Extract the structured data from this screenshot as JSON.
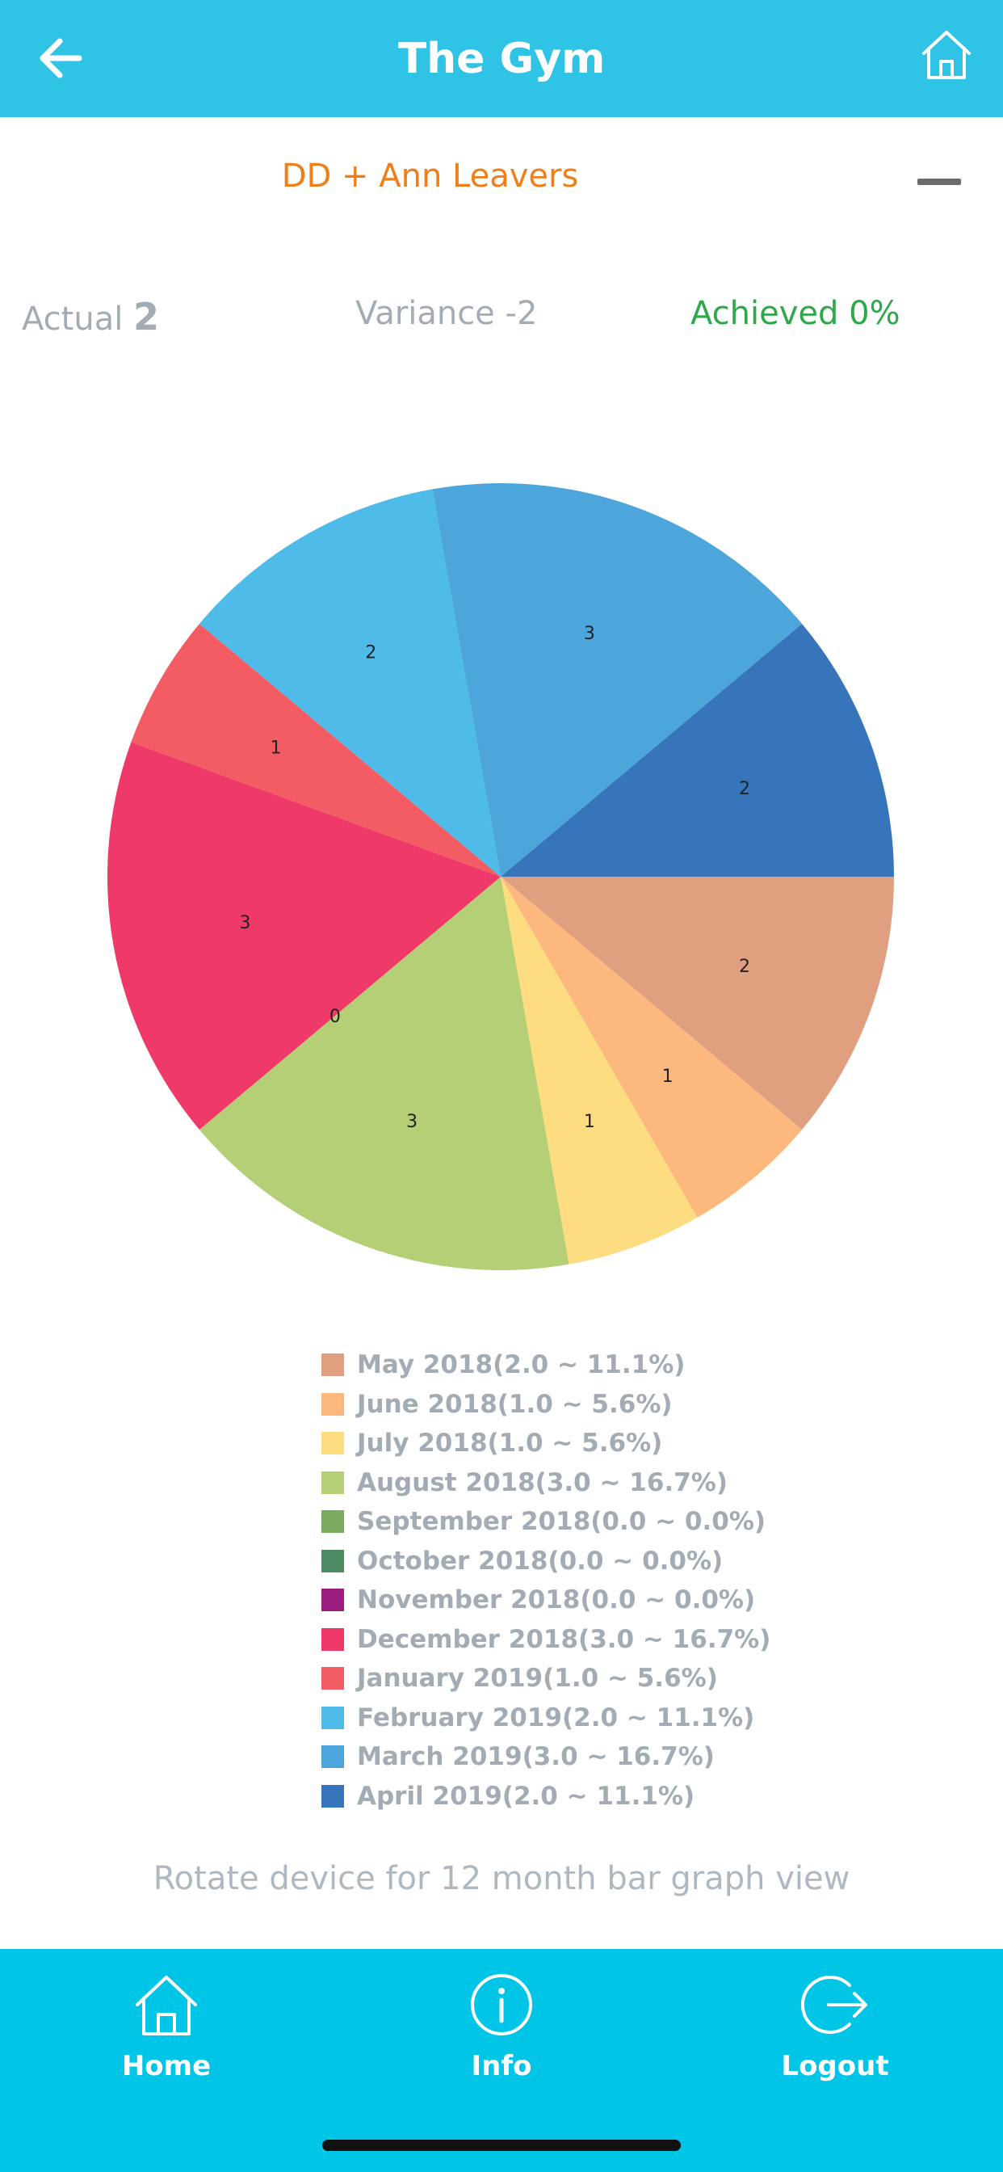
{
  "header": {
    "title": "The Gym",
    "back_icon": "arrow-left-icon",
    "home_icon": "home-icon"
  },
  "section": {
    "title": "DD + Ann Leavers",
    "collapse_icon": "minus-icon"
  },
  "stats": {
    "actual_label": "Actual",
    "actual_value": "2",
    "variance": "Variance -2",
    "achieved": "Achieved 0%"
  },
  "chart_data": {
    "type": "pie",
    "slices": [
      {
        "label": "May 2018(2.0 ~ 11.1%)",
        "value": 2,
        "color": "#e0a07f"
      },
      {
        "label": "June 2018(1.0 ~ 5.6%)",
        "value": 1,
        "color": "#fdb87d"
      },
      {
        "label": "July 2018(1.0 ~ 5.6%)",
        "value": 1,
        "color": "#fddd80"
      },
      {
        "label": "August 2018(3.0 ~ 16.7%)",
        "value": 3,
        "color": "#b5cf76"
      },
      {
        "label": "September 2018(0.0 ~ 0.0%)",
        "value": 0,
        "color": "#7aab5e"
      },
      {
        "label": "October 2018(0.0 ~ 0.0%)",
        "value": 0,
        "color": "#4e8c66"
      },
      {
        "label": "November 2018(0.0 ~ 0.0%)",
        "value": 0,
        "color": "#9b1d7e"
      },
      {
        "label": "December 2018(3.0 ~ 16.7%)",
        "value": 3,
        "color": "#ef3a69"
      },
      {
        "label": "January 2019(1.0 ~ 5.6%)",
        "value": 1,
        "color": "#f25c62"
      },
      {
        "label": "February 2019(2.0 ~ 11.1%)",
        "value": 2,
        "color": "#4fbbe8"
      },
      {
        "label": "March 2019(3.0 ~ 16.7%)",
        "value": 3,
        "color": "#4ca6dc"
      },
      {
        "label": "April 2019(2.0 ~ 11.1%)",
        "value": 2,
        "color": "#3775bb"
      }
    ],
    "data_labels": [
      "2",
      "1",
      "1",
      "3",
      "0",
      "3",
      "1",
      "2",
      "3",
      "2"
    ],
    "legend_position": "bottom"
  },
  "hint": "Rotate device for 12 month bar graph view",
  "tabbar": {
    "items": [
      {
        "label": "Home",
        "icon": "home-icon"
      },
      {
        "label": "Info",
        "icon": "info-icon"
      },
      {
        "label": "Logout",
        "icon": "logout-icon"
      }
    ]
  }
}
